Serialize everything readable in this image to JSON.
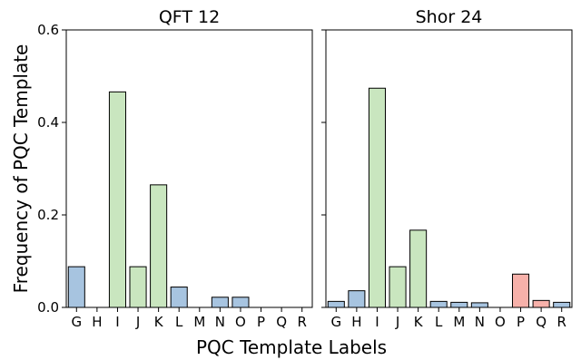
{
  "figure": {
    "shared_ylabel": "Frequency of PQC Template",
    "shared_xlabel": "PQC Template Labels"
  },
  "chart_data": [
    {
      "type": "bar",
      "title": "QFT 12",
      "xlabel": "",
      "ylabel": "",
      "ylim": [
        0,
        0.6
      ],
      "yticks": [
        "0.0",
        "0.2",
        "0.4",
        "0.6"
      ],
      "grid": false,
      "categories": [
        "G",
        "H",
        "I",
        "J",
        "K",
        "L",
        "M",
        "N",
        "O",
        "P",
        "Q",
        "R"
      ],
      "values": [
        0.088,
        0,
        0.466,
        0.088,
        0.265,
        0.044,
        0,
        0.022,
        0.022,
        0,
        0,
        0
      ],
      "colors": [
        "#a7c4e0",
        "#a7c4e0",
        "#c9e6bf",
        "#c9e6bf",
        "#c9e6bf",
        "#a7c4e0",
        "#a7c4e0",
        "#a7c4e0",
        "#a7c4e0",
        "#f7b1aa",
        "#f7b1aa",
        "#a7c4e0"
      ]
    },
    {
      "type": "bar",
      "title": "Shor 24",
      "xlabel": "",
      "ylabel": "",
      "ylim": [
        0,
        0.6
      ],
      "yticks": [
        "",
        "",
        "",
        ""
      ],
      "grid": false,
      "categories": [
        "G",
        "H",
        "I",
        "J",
        "K",
        "L",
        "M",
        "N",
        "O",
        "P",
        "Q",
        "R"
      ],
      "values": [
        0.013,
        0.036,
        0.474,
        0.088,
        0.167,
        0.013,
        0.011,
        0.01,
        0,
        0.072,
        0.015,
        0.011
      ],
      "colors": [
        "#a7c4e0",
        "#a7c4e0",
        "#c9e6bf",
        "#c9e6bf",
        "#c9e6bf",
        "#a7c4e0",
        "#a7c4e0",
        "#a7c4e0",
        "#a7c4e0",
        "#f7b1aa",
        "#f7b1aa",
        "#a7c4e0"
      ]
    }
  ]
}
